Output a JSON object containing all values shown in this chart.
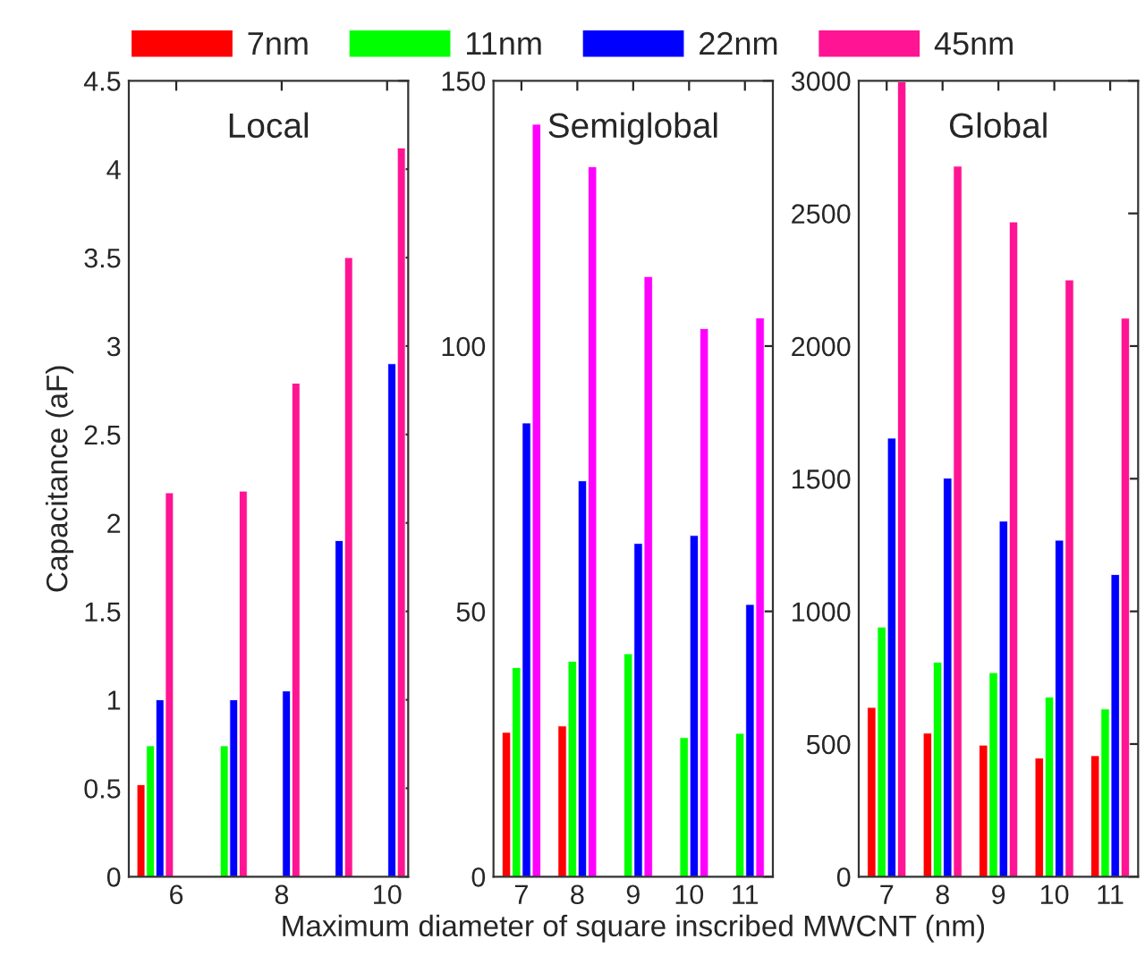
{
  "chart_data": [
    {
      "type": "bar",
      "title": "Local",
      "ylabel": "Capacitance (aF)",
      "x": [
        5.6,
        7,
        8,
        9,
        10
      ],
      "xlim": [
        5.1,
        10.4
      ],
      "xticks": [
        6,
        8,
        10
      ],
      "ylim": [
        0,
        4.5
      ],
      "yticks": [
        0,
        0.5,
        1,
        1.5,
        2,
        2.5,
        3,
        3.5,
        4,
        4.5
      ],
      "legend": "top",
      "series": [
        {
          "name": "7nm",
          "color": "#ff0000",
          "values": [
            0.52,
            null,
            null,
            null,
            null
          ]
        },
        {
          "name": "11nm",
          "color": "#00ff00",
          "values": [
            0.74,
            0.74,
            null,
            null,
            null
          ]
        },
        {
          "name": "22nm",
          "color": "#0000ff",
          "values": [
            1.0,
            1.0,
            1.05,
            1.9,
            2.9
          ]
        },
        {
          "name": "45nm",
          "color": "#ff1493",
          "values": [
            2.17,
            2.18,
            2.79,
            3.5,
            4.12
          ]
        }
      ]
    },
    {
      "type": "bar",
      "title": "Semiglobal",
      "xlabel": "Maximum diameter of square inscribed MWCNT (nm)",
      "categories": [
        "7",
        "8",
        "9",
        "10",
        "11"
      ],
      "ylim": [
        0,
        150
      ],
      "yticks": [
        0,
        50,
        100,
        150
      ],
      "series": [
        {
          "color": "#ff0000",
          "values": [
            27.2,
            28.4,
            null,
            null,
            null
          ]
        },
        {
          "color": "#00ff00",
          "values": [
            39.4,
            40.6,
            42.0,
            26.2,
            27.0
          ]
        },
        {
          "color": "#0000ff",
          "values": [
            85.5,
            74.6,
            62.8,
            64.3,
            51.3
          ]
        },
        {
          "color": "#ff00ff",
          "values": [
            141.8,
            133.8,
            113.1,
            103.3,
            105.3
          ]
        }
      ]
    },
    {
      "type": "bar",
      "title": "Global",
      "categories": [
        "7",
        "8",
        "9",
        "10",
        "11"
      ],
      "ylim": [
        0,
        3000
      ],
      "yticks": [
        0,
        500,
        1000,
        1500,
        2000,
        2500,
        3000
      ],
      "series": [
        {
          "color": "#ff0000",
          "values": [
            638,
            541,
            496,
            447,
            456
          ]
        },
        {
          "color": "#00ff00",
          "values": [
            941,
            808,
            769,
            677,
            632
          ]
        },
        {
          "color": "#0000ff",
          "values": [
            1653,
            1502,
            1340,
            1268,
            1139
          ]
        },
        {
          "color": "#ff1493",
          "values": [
            2996,
            2678,
            2468,
            2249,
            2105
          ]
        }
      ]
    }
  ]
}
